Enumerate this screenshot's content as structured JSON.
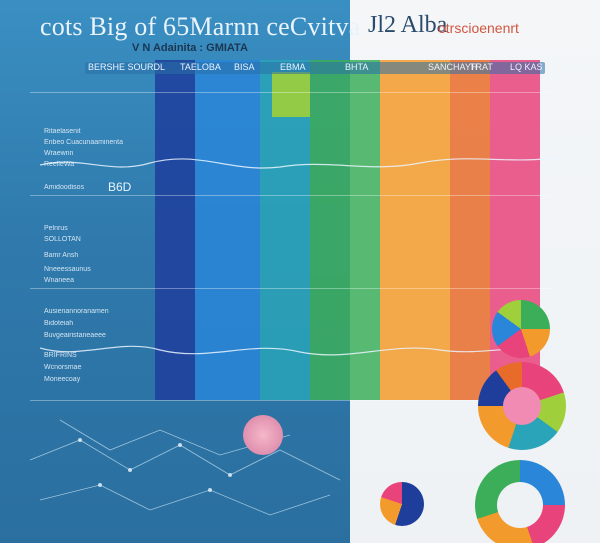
{
  "header": {
    "title_left": "cots Big of 65Marnn ceCvitva",
    "title_right": "Jl2 Alba",
    "title_right_small": "otrscioenenrt",
    "subtitle": "V N Adainita : GMIATA"
  },
  "columns": {
    "labels": [
      "TAELOBA",
      "BISA",
      "EBMA",
      "BHTA",
      "SANCHAYH",
      "TRAT",
      "LQ KAS"
    ],
    "row_header_left": "BERSHE SOURDL"
  },
  "rows": [
    {
      "label": "Ritaelasenit"
    },
    {
      "label": "Enbeo Cuacunaaminenta"
    },
    {
      "label": "Wraewnn"
    },
    {
      "label": "ReelleWa"
    },
    {
      "label": "Amidoodisos"
    },
    {
      "label": "Pelnrus"
    },
    {
      "label": "SOLLOTAN"
    },
    {
      "label": "Bamr Ansh"
    },
    {
      "label": "Nneeessaunus"
    },
    {
      "label": "Wnaneea"
    },
    {
      "label": "Ausienannoranamen"
    },
    {
      "label": "Bidoteiah"
    },
    {
      "label": "Buvgeairistaneaeee"
    },
    {
      "label": "BRIFRINS"
    },
    {
      "label": "Wcnorsmae"
    },
    {
      "label": "Moneecoay"
    }
  ],
  "annotations": {
    "mid_label": "B6D"
  },
  "colors": {
    "navy": "#1f3e9c",
    "blue": "#2a86d8",
    "teal": "#2aa4b8",
    "green": "#3cae5a",
    "yellow_green": "#9fcf3a",
    "orange": "#f39a2c",
    "dark_orange": "#e96b2a",
    "pink": "#e8437a",
    "red": "#d93a4d"
  }
}
